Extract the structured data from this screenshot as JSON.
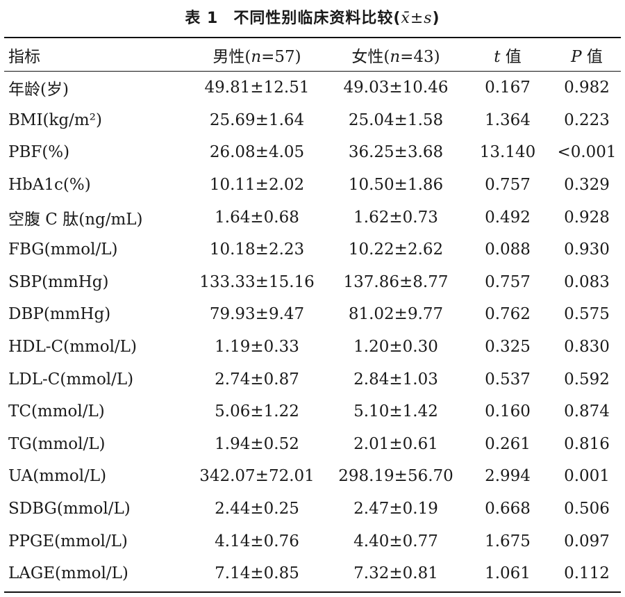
{
  "title": {
    "label": "表 1",
    "text": "不同性别临床资料比较(",
    "stat": "x̄±s",
    "close": ")"
  },
  "header": {
    "col0": "指标",
    "col1_prefix": "男性(",
    "col1_n": "n",
    "col1_suffix": "=57)",
    "col2_prefix": "女性(",
    "col2_n": "n",
    "col2_suffix": "=43)",
    "col3_var": "t",
    "col3_suffix": " 值",
    "col4_var": "P",
    "col4_suffix": " 值"
  },
  "rows": [
    {
      "name": "年龄(岁)",
      "male": "49.81±12.51",
      "female": "49.03±10.46",
      "t": "0.167",
      "p": "0.982"
    },
    {
      "name": "BMI(kg/m²)",
      "male": "25.69±1.64",
      "female": "25.04±1.58",
      "t": "1.364",
      "p": "0.223"
    },
    {
      "name": "PBF(%)",
      "male": "26.08±4.05",
      "female": "36.25±3.68",
      "t": "13.140",
      "p": "<0.001"
    },
    {
      "name": "HbA1c(%)",
      "male": "10.11±2.02",
      "female": "10.50±1.86",
      "t": "0.757",
      "p": "0.329"
    },
    {
      "name": "空腹 C 肽(ng/mL)",
      "male": "1.64±0.68",
      "female": "1.62±0.73",
      "t": "0.492",
      "p": "0.928"
    },
    {
      "name": "FBG(mmol/L)",
      "male": "10.18±2.23",
      "female": "10.22±2.62",
      "t": "0.088",
      "p": "0.930"
    },
    {
      "name": "SBP(mmHg)",
      "male": "133.33±15.16",
      "female": "137.86±8.77",
      "t": "0.757",
      "p": "0.083"
    },
    {
      "name": "DBP(mmHg)",
      "male": "79.93±9.47",
      "female": "81.02±9.77",
      "t": "0.762",
      "p": "0.575"
    },
    {
      "name": "HDL-C(mmol/L)",
      "male": "1.19±0.33",
      "female": "1.20±0.30",
      "t": "0.325",
      "p": "0.830"
    },
    {
      "name": "LDL-C(mmol/L)",
      "male": "2.74±0.87",
      "female": "2.84±1.03",
      "t": "0.537",
      "p": "0.592"
    },
    {
      "name": "TC(mmol/L)",
      "male": "5.06±1.22",
      "female": "5.10±1.42",
      "t": "0.160",
      "p": "0.874"
    },
    {
      "name": "TG(mmol/L)",
      "male": "1.94±0.52",
      "female": "2.01±0.61",
      "t": "0.261",
      "p": "0.816"
    },
    {
      "name": "UA(mmol/L)",
      "male": "342.07±72.01",
      "female": "298.19±56.70",
      "t": "2.994",
      "p": "0.001"
    },
    {
      "name": "SDBG(mmol/L)",
      "male": "2.44±0.25",
      "female": "2.47±0.19",
      "t": "0.668",
      "p": "0.506"
    },
    {
      "name": "PPGE(mmol/L)",
      "male": "4.14±0.76",
      "female": "4.40±0.77",
      "t": "1.675",
      "p": "0.097"
    },
    {
      "name": "LAGE(mmol/L)",
      "male": "7.14±0.85",
      "female": "7.32±0.81",
      "t": "1.061",
      "p": "0.112"
    }
  ]
}
